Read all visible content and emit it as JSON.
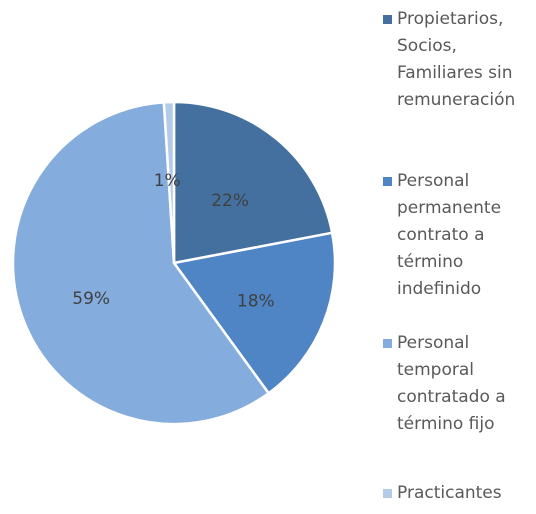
{
  "chart_data": {
    "type": "pie",
    "categories": [
      "Propietarios, Socios, Familiares sin remuneración",
      "Personal permanente contrato a término indefinido",
      "Personal temporal contratado a término fijo",
      "Practicantes"
    ],
    "values": [
      22,
      18,
      59,
      1
    ],
    "value_labels": [
      "22%",
      "18%",
      "59%",
      "1%"
    ],
    "colors": [
      "#44709f",
      "#4f85c5",
      "#84acdc",
      "#b3cbe8"
    ],
    "legend": "right"
  }
}
